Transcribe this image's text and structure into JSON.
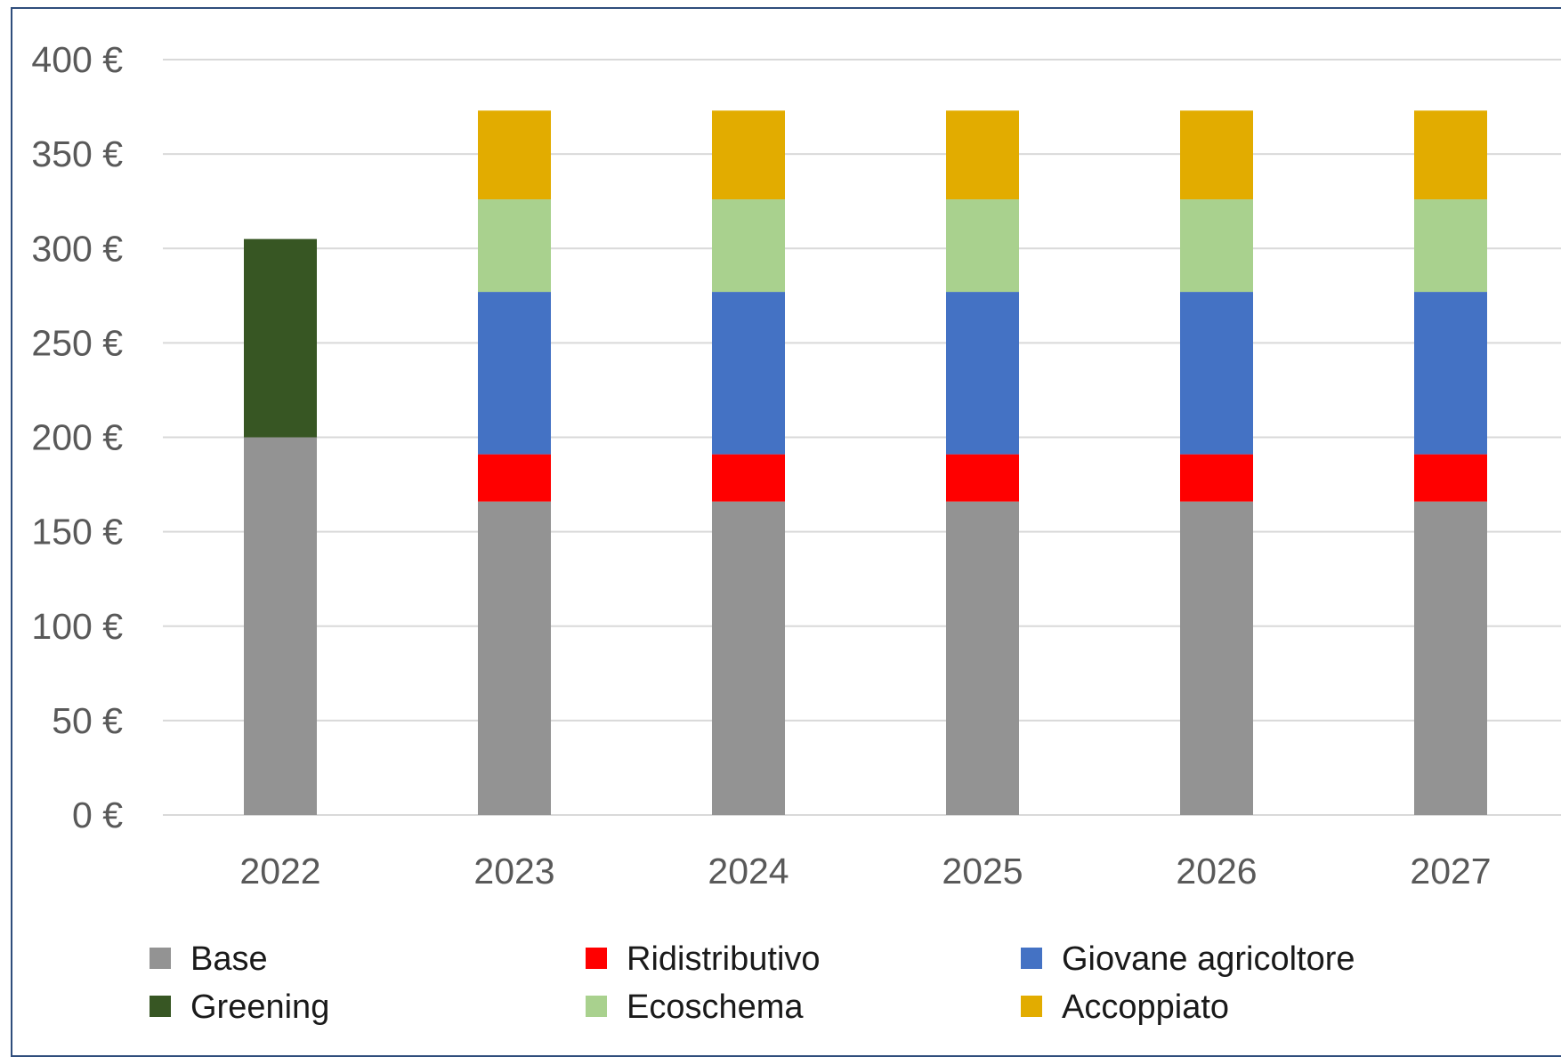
{
  "chart_data": {
    "type": "bar",
    "stacked": true,
    "title": "",
    "xlabel": "",
    "ylabel": "",
    "categories": [
      "2022",
      "2023",
      "2024",
      "2025",
      "2026",
      "2027"
    ],
    "ylim": [
      0,
      400
    ],
    "yticks": [
      0,
      50,
      100,
      150,
      200,
      250,
      300,
      350,
      400
    ],
    "ytick_labels": [
      "0 €",
      "50 €",
      "100 €",
      "150 €",
      "200 €",
      "250 €",
      "300 €",
      "350 €",
      "400 €"
    ],
    "grid": true,
    "legend_position": "bottom",
    "series": [
      {
        "name": "Base",
        "color": "#939393",
        "values": [
          200,
          166,
          166,
          166,
          166,
          166
        ]
      },
      {
        "name": "Greening",
        "color": "#375623",
        "values": [
          105,
          0,
          0,
          0,
          0,
          0
        ]
      },
      {
        "name": "Ridistributivo",
        "color": "#ff0000",
        "values": [
          0,
          25,
          25,
          25,
          25,
          25
        ]
      },
      {
        "name": "Ecoschema",
        "color": "#a9d18e",
        "values": [
          0,
          49,
          49,
          49,
          49,
          49
        ]
      },
      {
        "name": "Giovane agricoltore",
        "color": "#4472c4",
        "values": [
          0,
          86,
          86,
          86,
          86,
          86
        ]
      },
      {
        "name": "Accoppiato",
        "color": "#e2ac00",
        "values": [
          0,
          47,
          47,
          47,
          47,
          47
        ]
      }
    ],
    "stack_order": [
      "Base",
      "Greening",
      "Ridistributivo",
      "Giovane agricoltore",
      "Ecoschema",
      "Accoppiato"
    ],
    "legend_order": [
      "Base",
      "Ridistributivo",
      "Giovane agricoltore",
      "Greening",
      "Ecoschema",
      "Accoppiato"
    ]
  }
}
